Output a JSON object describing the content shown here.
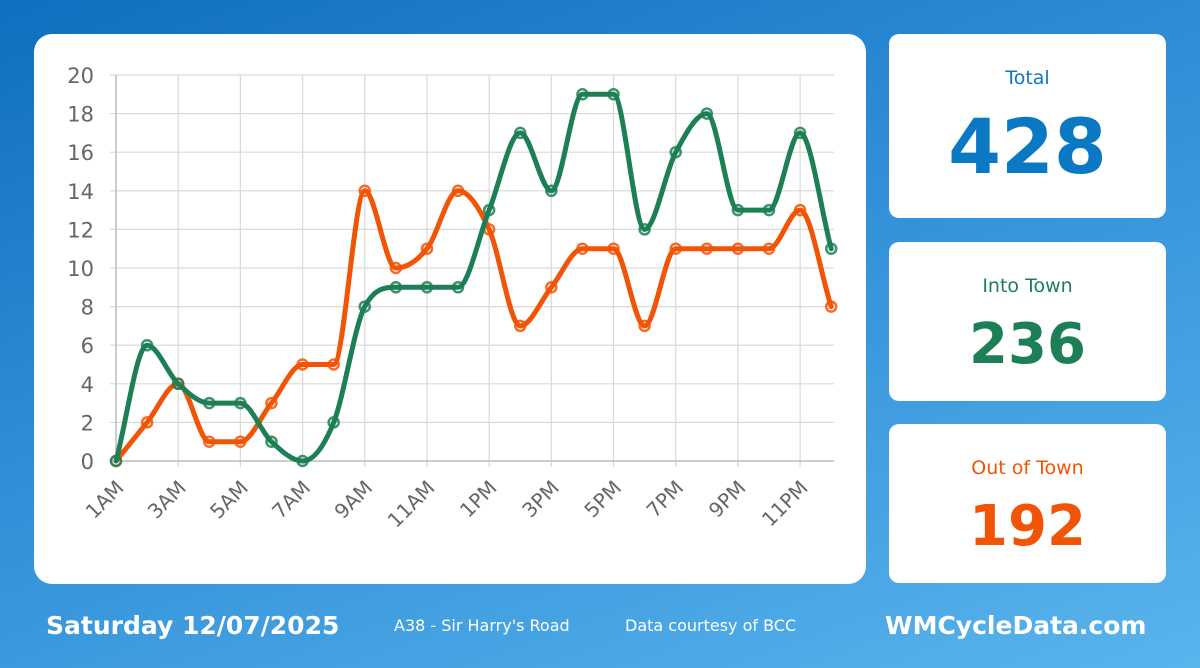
{
  "colors": {
    "total": "#0a78c2",
    "into": "#1c7f55",
    "out": "#f25406"
  },
  "stats": {
    "total_label": "Total",
    "total_value": "428",
    "into_label": "Into Town",
    "into_value": "236",
    "out_label": "Out of Town",
    "out_value": "192"
  },
  "footer": {
    "date": "Saturday 12/07/2025",
    "location": "A38 - Sir Harry's Road",
    "credit": "Data courtesy of BCC",
    "site": "WMCycleData.com"
  },
  "chart_data": {
    "type": "line",
    "title": "",
    "xlabel": "",
    "ylabel": "",
    "x": [
      "1AM",
      "2AM",
      "3AM",
      "4AM",
      "5AM",
      "6AM",
      "7AM",
      "8AM",
      "9AM",
      "10AM",
      "11AM",
      "12PM",
      "1PM",
      "2PM",
      "3PM",
      "4PM",
      "5PM",
      "6PM",
      "7PM",
      "8PM",
      "9PM",
      "10PM",
      "11PM",
      "12AM"
    ],
    "x_tick_labels": [
      "1AM",
      "3AM",
      "5AM",
      "7AM",
      "9AM",
      "11AM",
      "1PM",
      "3PM",
      "5PM",
      "7PM",
      "9PM",
      "11PM"
    ],
    "y_ticks": [
      0,
      2,
      4,
      6,
      8,
      10,
      12,
      14,
      16,
      18,
      20
    ],
    "ylim": [
      0,
      20
    ],
    "grid": true,
    "legend": "none",
    "series": [
      {
        "color": "#1c7f55",
        "values": [
          0,
          6,
          4,
          3,
          3,
          1,
          0,
          2,
          8,
          9,
          9,
          9,
          13,
          17,
          14,
          19,
          19,
          12,
          16,
          18,
          13,
          13,
          17,
          11
        ]
      },
      {
        "color": "#f25406",
        "values": [
          0,
          2,
          4,
          1,
          1,
          3,
          5,
          5,
          14,
          10,
          11,
          14,
          12,
          7,
          9,
          11,
          11,
          7,
          11,
          11,
          11,
          11,
          13,
          8
        ]
      }
    ]
  }
}
